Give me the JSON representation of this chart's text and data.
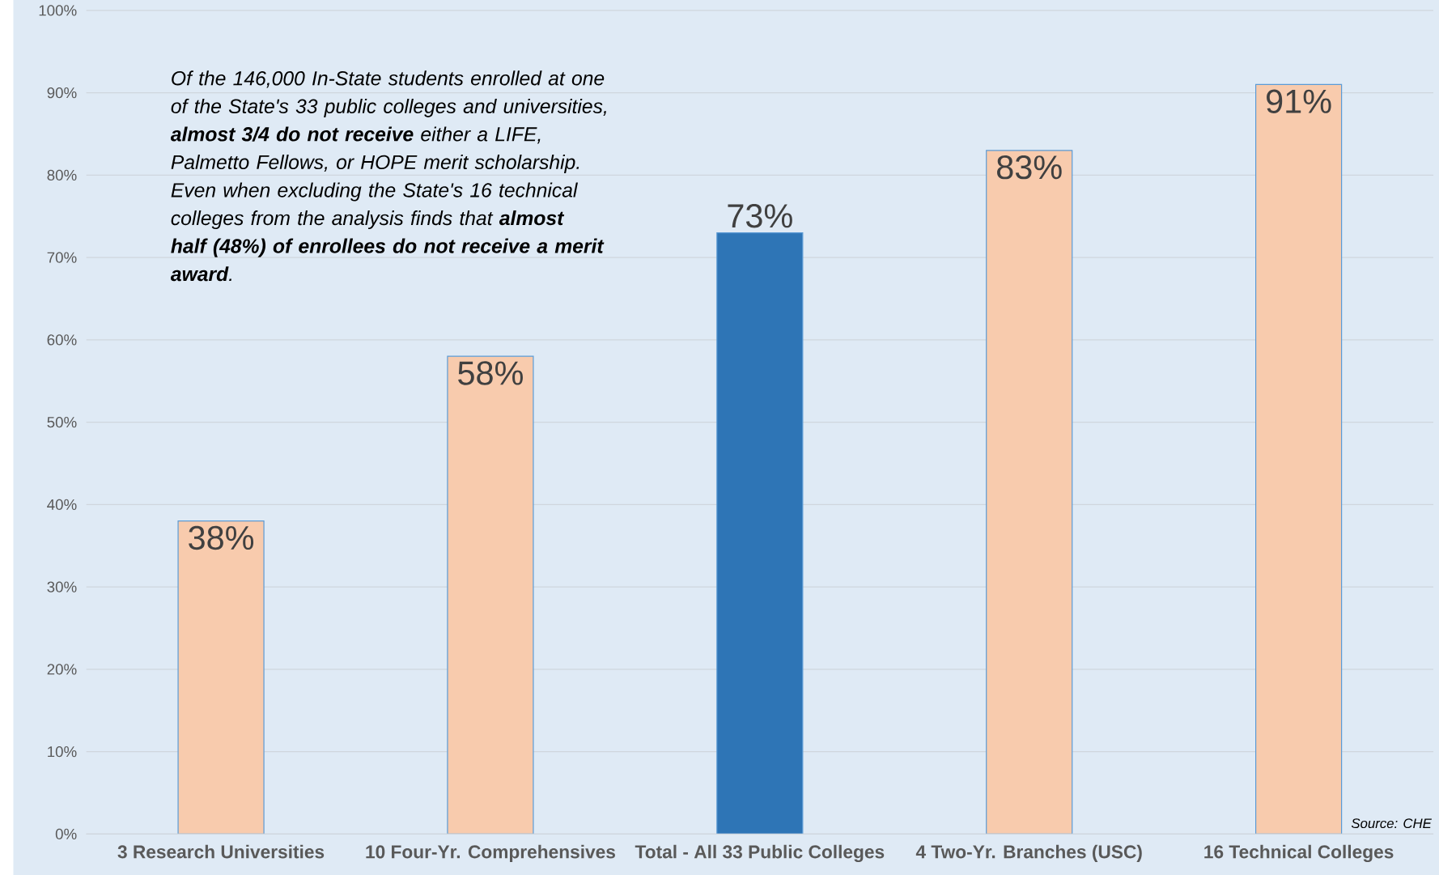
{
  "chart_data": {
    "type": "bar",
    "categories": [
      "3 Research Universities",
      "10 Four-Yr. Comprehensives",
      "Total - All 33 Public Colleges",
      "4 Two-Yr. Branches (USC)",
      "16 Technical Colleges"
    ],
    "values": [
      38,
      58,
      73,
      83,
      91
    ],
    "colors": [
      "#f8cbad",
      "#f8cbad",
      "#2e75b6",
      "#f8cbad",
      "#f8cbad"
    ],
    "value_labels": [
      "38%",
      "58%",
      "73%",
      "83%",
      "91%"
    ],
    "ylim": [
      0,
      100
    ],
    "yticks": [
      {
        "value": 0,
        "label": "0%"
      },
      {
        "value": 10,
        "label": "10%"
      },
      {
        "value": 20,
        "label": "20%"
      },
      {
        "value": 30,
        "label": "30%"
      },
      {
        "value": 40,
        "label": "40%"
      },
      {
        "value": 50,
        "label": "50%"
      },
      {
        "value": 60,
        "label": "60%"
      },
      {
        "value": 70,
        "label": "70%"
      },
      {
        "value": 80,
        "label": "80%"
      },
      {
        "value": 90,
        "label": "90%"
      },
      {
        "value": 100,
        "label": "100%"
      }
    ],
    "grid": "y",
    "annotations": [
      "Of the 146,000 In-State students enrolled at one of the State's 33 public colleges and universities, **almost 3/4 do not receive** either a LIFE, Palmetto Fellows, or HOPE merit scholarship. Even when excluding the State's 16 technical colleges from the analysis finds that **almost half (48%) of enrollees do not receive a merit award**.",
      "Source: CHE"
    ]
  }
}
